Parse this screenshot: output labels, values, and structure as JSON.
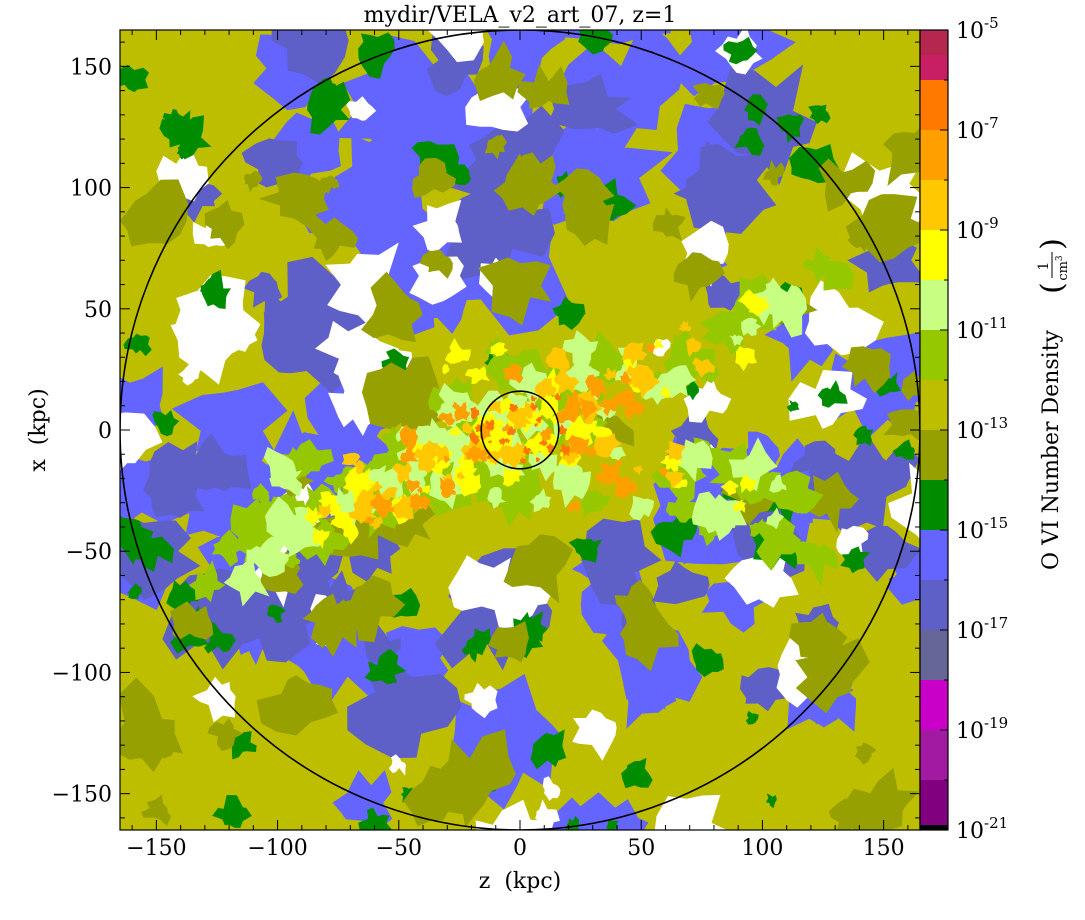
{
  "chart_data": {
    "type": "heatmap",
    "title": "mydir/VELA_v2_art_07, z=1",
    "xlabel": "z  (kpc)",
    "ylabel": "x  (kpc)",
    "xlim": [
      -165,
      165
    ],
    "ylim": [
      -165,
      165
    ],
    "x_ticks": [
      -150,
      -100,
      -50,
      0,
      50,
      100,
      150
    ],
    "x_tick_labels": [
      "−150",
      "−100",
      "−50",
      "0",
      "50",
      "100",
      "150"
    ],
    "y_ticks": [
      -150,
      -100,
      -50,
      0,
      50,
      100,
      150
    ],
    "y_tick_labels": [
      "−150",
      "−100",
      "−50",
      "0",
      "50",
      "100",
      "150"
    ],
    "colorbar": {
      "label": "O VI Number Density",
      "unit_numerator": "1",
      "unit_denominator": "cm",
      "unit_exponent": "3",
      "scale": "log",
      "range_log10": [
        -21,
        -5
      ],
      "ticks": [
        {
          "base": "10",
          "exp": "-5",
          "log10": -5
        },
        {
          "base": "10",
          "exp": "-7",
          "log10": -7
        },
        {
          "base": "10",
          "exp": "-9",
          "log10": -9
        },
        {
          "base": "10",
          "exp": "-11",
          "log10": -11
        },
        {
          "base": "10",
          "exp": "-13",
          "log10": -13
        },
        {
          "base": "10",
          "exp": "-15",
          "log10": -15
        },
        {
          "base": "10",
          "exp": "-17",
          "log10": -17
        },
        {
          "base": "10",
          "exp": "-19",
          "log10": -19
        },
        {
          "base": "10",
          "exp": "-21",
          "log10": -21
        }
      ],
      "bands": [
        {
          "from": -21.0,
          "to": -20.9,
          "color": "#000000"
        },
        {
          "from": -20.9,
          "to": -20.0,
          "color": "#800080"
        },
        {
          "from": -20.0,
          "to": -19.0,
          "color": "#a21aa2"
        },
        {
          "from": -19.0,
          "to": -18.0,
          "color": "#c800c8"
        },
        {
          "from": -18.0,
          "to": -17.0,
          "color": "#666699"
        },
        {
          "from": -17.0,
          "to": -16.0,
          "color": "#5f5fc8"
        },
        {
          "from": -16.0,
          "to": -15.0,
          "color": "#6464ff"
        },
        {
          "from": -15.0,
          "to": -14.0,
          "color": "#008c00"
        },
        {
          "from": -14.0,
          "to": -13.0,
          "color": "#96a000"
        },
        {
          "from": -13.0,
          "to": -12.0,
          "color": "#bebe00"
        },
        {
          "from": -12.0,
          "to": -11.0,
          "color": "#96c800"
        },
        {
          "from": -11.0,
          "to": -10.0,
          "color": "#c8ff82"
        },
        {
          "from": -10.0,
          "to": -9.0,
          "color": "#ffff00"
        },
        {
          "from": -9.0,
          "to": -8.0,
          "color": "#ffc800"
        },
        {
          "from": -8.0,
          "to": -7.0,
          "color": "#ffa000"
        },
        {
          "from": -7.0,
          "to": -6.0,
          "color": "#ff7800"
        },
        {
          "from": -6.0,
          "to": -5.5,
          "color": "#c81e64"
        },
        {
          "from": -5.5,
          "to": -5.0,
          "color": "#b42850"
        }
      ]
    },
    "circles": [
      {
        "name": "virial-radius",
        "center": [
          0,
          0
        ],
        "radius_kpc": 165
      },
      {
        "name": "inner-radius",
        "center": [
          0,
          0
        ],
        "radius_kpc": 16
      }
    ],
    "background_color": "#bebe00"
  }
}
